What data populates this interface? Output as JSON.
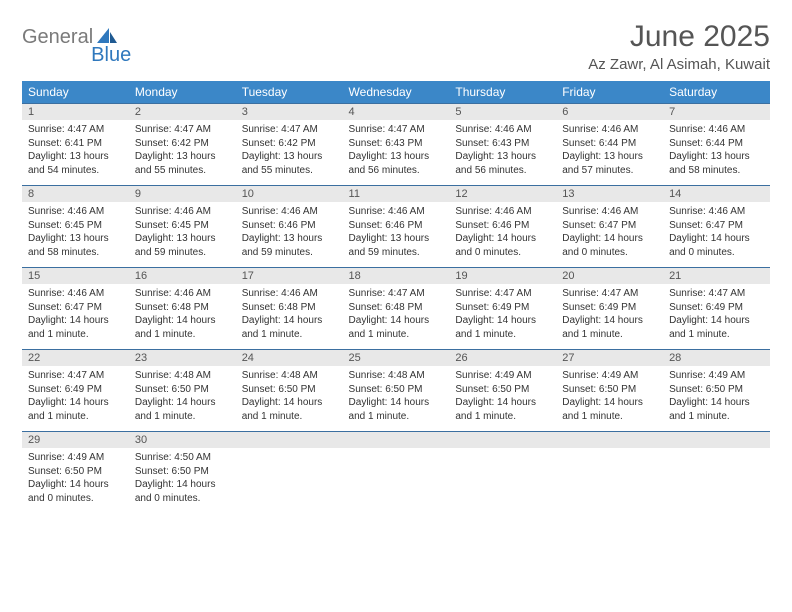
{
  "logo": {
    "part1": "General",
    "part2": "Blue"
  },
  "title": "June 2025",
  "location": "Az Zawr, Al Asimah, Kuwait",
  "colors": {
    "header_bg": "#3b87c8",
    "header_text": "#ffffff",
    "daynum_bg": "#e8e8e8",
    "row_border": "#3b6fa0",
    "logo_gray": "#7a7a7a",
    "logo_blue": "#2f78bd",
    "title_color": "#555555"
  },
  "daysOfWeek": [
    "Sunday",
    "Monday",
    "Tuesday",
    "Wednesday",
    "Thursday",
    "Friday",
    "Saturday"
  ],
  "weeks": [
    [
      {
        "n": "1",
        "sunrise": "4:47 AM",
        "sunset": "6:41 PM",
        "daylight": "13 hours and 54 minutes."
      },
      {
        "n": "2",
        "sunrise": "4:47 AM",
        "sunset": "6:42 PM",
        "daylight": "13 hours and 55 minutes."
      },
      {
        "n": "3",
        "sunrise": "4:47 AM",
        "sunset": "6:42 PM",
        "daylight": "13 hours and 55 minutes."
      },
      {
        "n": "4",
        "sunrise": "4:47 AM",
        "sunset": "6:43 PM",
        "daylight": "13 hours and 56 minutes."
      },
      {
        "n": "5",
        "sunrise": "4:46 AM",
        "sunset": "6:43 PM",
        "daylight": "13 hours and 56 minutes."
      },
      {
        "n": "6",
        "sunrise": "4:46 AM",
        "sunset": "6:44 PM",
        "daylight": "13 hours and 57 minutes."
      },
      {
        "n": "7",
        "sunrise": "4:46 AM",
        "sunset": "6:44 PM",
        "daylight": "13 hours and 58 minutes."
      }
    ],
    [
      {
        "n": "8",
        "sunrise": "4:46 AM",
        "sunset": "6:45 PM",
        "daylight": "13 hours and 58 minutes."
      },
      {
        "n": "9",
        "sunrise": "4:46 AM",
        "sunset": "6:45 PM",
        "daylight": "13 hours and 59 minutes."
      },
      {
        "n": "10",
        "sunrise": "4:46 AM",
        "sunset": "6:46 PM",
        "daylight": "13 hours and 59 minutes."
      },
      {
        "n": "11",
        "sunrise": "4:46 AM",
        "sunset": "6:46 PM",
        "daylight": "13 hours and 59 minutes."
      },
      {
        "n": "12",
        "sunrise": "4:46 AM",
        "sunset": "6:46 PM",
        "daylight": "14 hours and 0 minutes."
      },
      {
        "n": "13",
        "sunrise": "4:46 AM",
        "sunset": "6:47 PM",
        "daylight": "14 hours and 0 minutes."
      },
      {
        "n": "14",
        "sunrise": "4:46 AM",
        "sunset": "6:47 PM",
        "daylight": "14 hours and 0 minutes."
      }
    ],
    [
      {
        "n": "15",
        "sunrise": "4:46 AM",
        "sunset": "6:47 PM",
        "daylight": "14 hours and 1 minute."
      },
      {
        "n": "16",
        "sunrise": "4:46 AM",
        "sunset": "6:48 PM",
        "daylight": "14 hours and 1 minute."
      },
      {
        "n": "17",
        "sunrise": "4:46 AM",
        "sunset": "6:48 PM",
        "daylight": "14 hours and 1 minute."
      },
      {
        "n": "18",
        "sunrise": "4:47 AM",
        "sunset": "6:48 PM",
        "daylight": "14 hours and 1 minute."
      },
      {
        "n": "19",
        "sunrise": "4:47 AM",
        "sunset": "6:49 PM",
        "daylight": "14 hours and 1 minute."
      },
      {
        "n": "20",
        "sunrise": "4:47 AM",
        "sunset": "6:49 PM",
        "daylight": "14 hours and 1 minute."
      },
      {
        "n": "21",
        "sunrise": "4:47 AM",
        "sunset": "6:49 PM",
        "daylight": "14 hours and 1 minute."
      }
    ],
    [
      {
        "n": "22",
        "sunrise": "4:47 AM",
        "sunset": "6:49 PM",
        "daylight": "14 hours and 1 minute."
      },
      {
        "n": "23",
        "sunrise": "4:48 AM",
        "sunset": "6:50 PM",
        "daylight": "14 hours and 1 minute."
      },
      {
        "n": "24",
        "sunrise": "4:48 AM",
        "sunset": "6:50 PM",
        "daylight": "14 hours and 1 minute."
      },
      {
        "n": "25",
        "sunrise": "4:48 AM",
        "sunset": "6:50 PM",
        "daylight": "14 hours and 1 minute."
      },
      {
        "n": "26",
        "sunrise": "4:49 AM",
        "sunset": "6:50 PM",
        "daylight": "14 hours and 1 minute."
      },
      {
        "n": "27",
        "sunrise": "4:49 AM",
        "sunset": "6:50 PM",
        "daylight": "14 hours and 1 minute."
      },
      {
        "n": "28",
        "sunrise": "4:49 AM",
        "sunset": "6:50 PM",
        "daylight": "14 hours and 1 minute."
      }
    ],
    [
      {
        "n": "29",
        "sunrise": "4:49 AM",
        "sunset": "6:50 PM",
        "daylight": "14 hours and 0 minutes."
      },
      {
        "n": "30",
        "sunrise": "4:50 AM",
        "sunset": "6:50 PM",
        "daylight": "14 hours and 0 minutes."
      },
      {
        "empty": true
      },
      {
        "empty": true
      },
      {
        "empty": true
      },
      {
        "empty": true
      },
      {
        "empty": true
      }
    ]
  ],
  "labels": {
    "sunrise": "Sunrise: ",
    "sunset": "Sunset: ",
    "daylight": "Daylight: "
  }
}
